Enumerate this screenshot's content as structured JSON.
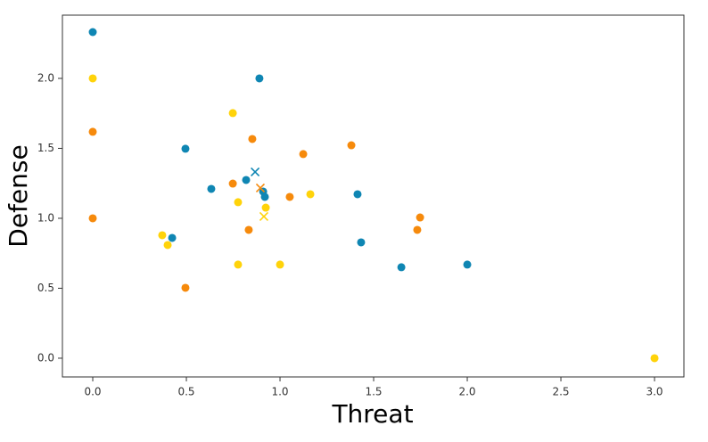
{
  "chart_data": {
    "type": "scatter",
    "xlabel": "Threat",
    "ylabel": "Defense",
    "xlim": [
      -0.162,
      3.157
    ],
    "ylim": [
      -0.134,
      2.452
    ],
    "xticks": [
      {
        "value": 0,
        "label": "0.0"
      },
      0.5,
      {
        "value": 1,
        "label": "1.0"
      },
      1.5,
      {
        "value": 2,
        "label": "2.0"
      },
      2.5,
      {
        "value": 3,
        "label": "3.0"
      }
    ],
    "yticks": [
      {
        "value": 0,
        "label": "0.0"
      },
      0.5,
      {
        "value": 1,
        "label": "1.0"
      },
      1.5,
      {
        "value": 2,
        "label": "2.0"
      }
    ],
    "series": [
      {
        "color": "#0f86b3",
        "marker": "o",
        "x": [
          0,
          0.89,
          0.495,
          0.633,
          0.819,
          0.91,
          0.919,
          1.414,
          1.433,
          1.648,
          2.0,
          0.424
        ],
        "values": [
          2.331,
          2.0,
          1.497,
          1.21,
          1.274,
          1.191,
          1.153,
          1.172,
          0.828,
          0.65,
          0.669,
          0.86
        ]
      },
      {
        "color": "#f68a0c",
        "marker": "o",
        "x": [
          0,
          0,
          0.852,
          0.748,
          1.124,
          1.381,
          1.052,
          0.833,
          0.495,
          1.748,
          1.733
        ],
        "values": [
          1.618,
          1.0,
          1.567,
          1.248,
          1.459,
          1.522,
          1.153,
          0.917,
          0.503,
          1.006,
          0.917
        ]
      },
      {
        "color": "#ffd30a",
        "marker": "o",
        "x": [
          0,
          0.748,
          0.776,
          0.924,
          1.162,
          0.371,
          0.4,
          0.776,
          1.0,
          3.0
        ],
        "values": [
          2.0,
          1.752,
          1.115,
          1.076,
          1.172,
          0.879,
          0.809,
          0.669,
          0.669,
          0
        ]
      },
      {
        "color": "#0f86b3",
        "marker": "x",
        "x": [
          0.867
        ],
        "values": [
          1.331
        ]
      },
      {
        "color": "#f68a0c",
        "marker": "x",
        "x": [
          0.895
        ],
        "values": [
          1.217
        ]
      },
      {
        "color": "#ffd30a",
        "marker": "x",
        "x": [
          0.914
        ],
        "values": [
          1.013
        ]
      }
    ]
  }
}
